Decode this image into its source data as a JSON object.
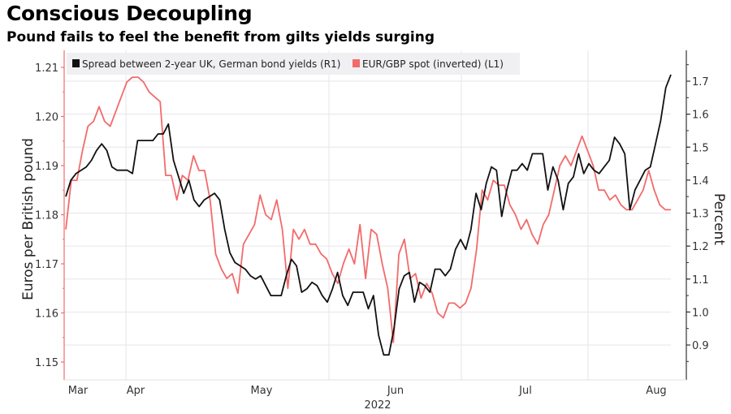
{
  "header": {
    "title": "Conscious Decoupling",
    "subtitle": "Pound fails to feel the benefit from gilts yields surging"
  },
  "chart_data": {
    "type": "line",
    "title": "Conscious Decoupling",
    "subtitle": "Pound fails to feel the benefit from gilts yields surging",
    "xlabel": "2022",
    "x_tick_labels": [
      "Mar",
      "Apr",
      "May",
      "Jun",
      "Jul",
      "Aug"
    ],
    "left_axis": {
      "label": "Euros per British pound",
      "range": [
        1.148,
        1.212
      ],
      "ticks": [
        "1.21",
        "1.20",
        "1.19",
        "1.18",
        "1.17",
        "1.16",
        "1.15"
      ]
    },
    "right_axis": {
      "label": "Percent",
      "range": [
        0.81,
        1.79
      ],
      "ticks": [
        "1.7",
        "1.6",
        "1.5",
        "1.4",
        "1.3",
        "1.2",
        "1.1",
        "1.0",
        "0.9"
      ]
    },
    "grid": true,
    "legend_position": "top-left",
    "colors": {
      "spread": "#111111",
      "eurgbp": "#f26b6b"
    },
    "series": [
      {
        "name": "Spread between 2-year UK, German bond yields (R1)",
        "axis": "right",
        "legend_label": "Spread between 2-year UK, German bond yields (R1)",
        "values": [
          1.35,
          1.4,
          1.42,
          1.43,
          1.44,
          1.46,
          1.49,
          1.51,
          1.49,
          1.44,
          1.43,
          1.43,
          1.43,
          1.42,
          1.52,
          1.52,
          1.52,
          1.52,
          1.54,
          1.54,
          1.57,
          1.46,
          1.41,
          1.36,
          1.4,
          1.34,
          1.32,
          1.34,
          1.35,
          1.36,
          1.34,
          1.25,
          1.18,
          1.15,
          1.14,
          1.13,
          1.11,
          1.1,
          1.11,
          1.08,
          1.05,
          1.05,
          1.05,
          1.11,
          1.16,
          1.14,
          1.06,
          1.07,
          1.09,
          1.08,
          1.05,
          1.03,
          1.07,
          1.12,
          1.05,
          1.02,
          1.06,
          1.06,
          1.06,
          1.01,
          1.05,
          0.93,
          0.87,
          0.87,
          0.95,
          1.07,
          1.11,
          1.12,
          1.03,
          1.09,
          1.08,
          1.06,
          1.13,
          1.13,
          1.11,
          1.13,
          1.19,
          1.22,
          1.19,
          1.25,
          1.36,
          1.31,
          1.39,
          1.44,
          1.43,
          1.29,
          1.37,
          1.43,
          1.43,
          1.45,
          1.43,
          1.48,
          1.48,
          1.48,
          1.37,
          1.44,
          1.4,
          1.31,
          1.39,
          1.41,
          1.48,
          1.42,
          1.45,
          1.43,
          1.42,
          1.44,
          1.46,
          1.53,
          1.51,
          1.48,
          1.31,
          1.37,
          1.4,
          1.43,
          1.44,
          1.51,
          1.58,
          1.68,
          1.72
        ]
      },
      {
        "name": "EUR/GBP spot (inverted) (L1)",
        "axis": "left",
        "legend_label": "EUR/GBP spot (inverted) (L1)",
        "values": [
          1.177,
          1.187,
          1.187,
          1.193,
          1.198,
          1.199,
          1.202,
          1.199,
          1.198,
          1.201,
          1.204,
          1.207,
          1.208,
          1.208,
          1.207,
          1.205,
          1.204,
          1.203,
          1.188,
          1.188,
          1.183,
          1.188,
          1.187,
          1.192,
          1.189,
          1.189,
          1.183,
          1.172,
          1.169,
          1.167,
          1.168,
          1.164,
          1.174,
          1.176,
          1.178,
          1.184,
          1.18,
          1.179,
          1.183,
          1.177,
          1.165,
          1.177,
          1.175,
          1.177,
          1.174,
          1.174,
          1.172,
          1.171,
          1.168,
          1.166,
          1.17,
          1.173,
          1.17,
          1.178,
          1.167,
          1.177,
          1.176,
          1.17,
          1.165,
          1.154,
          1.172,
          1.175,
          1.167,
          1.168,
          1.163,
          1.166,
          1.164,
          1.16,
          1.159,
          1.162,
          1.162,
          1.161,
          1.162,
          1.165,
          1.173,
          1.185,
          1.183,
          1.187,
          1.186,
          1.186,
          1.182,
          1.18,
          1.177,
          1.179,
          1.176,
          1.174,
          1.178,
          1.18,
          1.185,
          1.19,
          1.192,
          1.19,
          1.193,
          1.196,
          1.193,
          1.19,
          1.185,
          1.185,
          1.183,
          1.184,
          1.182,
          1.181,
          1.181,
          1.183,
          1.185,
          1.189,
          1.185,
          1.182,
          1.181,
          1.181
        ]
      }
    ]
  }
}
